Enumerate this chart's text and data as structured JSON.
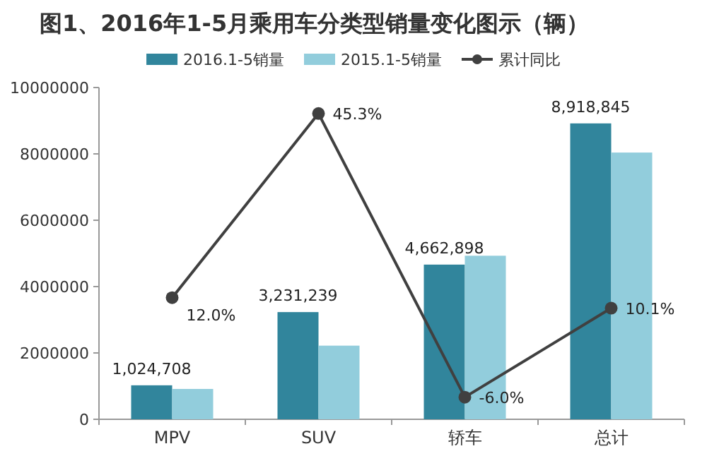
{
  "chart_data": {
    "type": "bar",
    "title": "图1、2016年1-5月乘用车分类型销量变化图示（辆）",
    "categories": [
      "MPV",
      "SUV",
      "轿车",
      "总计"
    ],
    "series": [
      {
        "name": "2016.1-5销量",
        "color": "#31859c",
        "values": [
          1024708,
          3231239,
          4662898,
          8918845
        ],
        "value_labels": [
          "1,024,708",
          "3,231,239",
          "4,662,898",
          "8,918,845"
        ]
      },
      {
        "name": "2015.1-5销量",
        "color": "#92cddc",
        "values": [
          915000,
          2220000,
          4930000,
          8040000
        ]
      },
      {
        "name": "累计同比",
        "type": "line",
        "axis": "y2",
        "color": "#404040",
        "marker": "circle",
        "values": [
          12.0,
          45.3,
          -6.0,
          10.1
        ],
        "value_labels": [
          "12.0%",
          "45.3%",
          "-6.0%",
          "10.1%"
        ]
      }
    ],
    "ylim": [
      0,
      10000000
    ],
    "yticks": [
      0,
      2000000,
      4000000,
      6000000,
      8000000,
      10000000
    ],
    "y2lim": [
      -10,
      50
    ],
    "grid": false,
    "legend": "top"
  }
}
